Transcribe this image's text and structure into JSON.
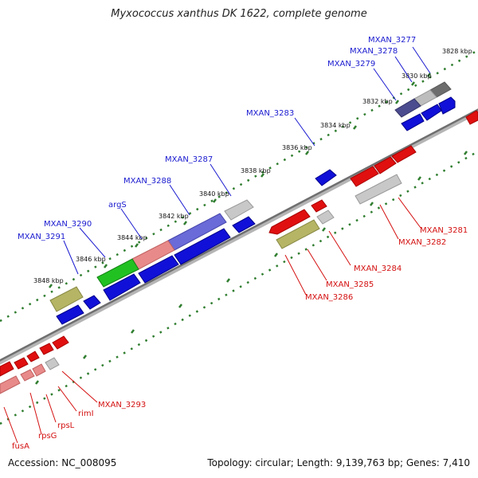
{
  "title": "Myxococcus xanthus DK 1622, complete genome",
  "footer": {
    "accession": "Accession: NC_008095",
    "summary": "Topology: circular; Length: 9,139,763 bp; Genes: 7,410"
  },
  "colors": {
    "blue_label": "#1a1ad0",
    "red_label": "#d41010",
    "backbone": "#7a7a7a",
    "dots": "#2f7d2f"
  },
  "ticks": [
    "3828 kbp",
    "3830 kbp",
    "3832 kbp",
    "3834 kbp",
    "3836 kbp",
    "3838 kbp",
    "3840 kbp",
    "3842 kbp",
    "3844 kbp",
    "3846 kbp",
    "3848 kbp"
  ],
  "labels_top": [
    "MXAN_3277",
    "MXAN_3278",
    "MXAN_3279",
    "MXAN_3283",
    "MXAN_3287",
    "MXAN_3288",
    "argS",
    "MXAN_3290",
    "MXAN_3291"
  ],
  "labels_bottom": [
    "MXAN_3281",
    "MXAN_3282",
    "MXAN_3284",
    "MXAN_3285",
    "MXAN_3286",
    "MXAN_3293",
    "rimI",
    "rpsL",
    "rpsG",
    "fusA"
  ]
}
